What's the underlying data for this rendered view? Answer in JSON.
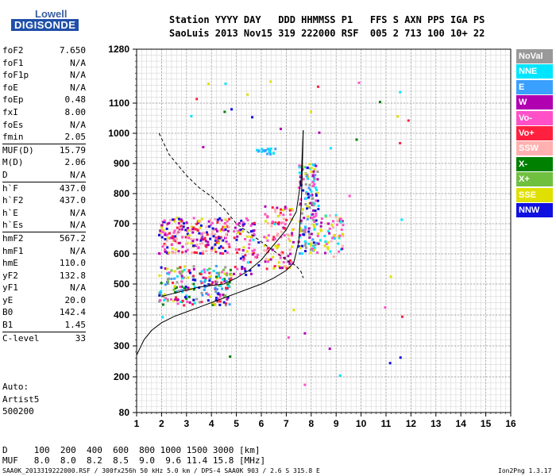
{
  "logo": {
    "line1": "Lowell",
    "line2": "DIGISONDE"
  },
  "header": {
    "row1": "Station YYYY DAY   DDD HHMMSS P1   FFS S AXN PPS IGA PS",
    "row2": "SaoLuis 2013 Nov15 319 222000 RSF  005 2 713 100 10+ 22"
  },
  "parameters": [
    {
      "label": "foF2",
      "value": "7.650"
    },
    {
      "label": "foF1",
      "value": "N/A"
    },
    {
      "label": "foF1p",
      "value": "N/A"
    },
    {
      "label": "foE",
      "value": "N/A"
    },
    {
      "label": "foEp",
      "value": "0.48"
    },
    {
      "label": "fxI",
      "value": "8.00"
    },
    {
      "label": "foEs",
      "value": "N/A"
    },
    {
      "label": "fmin",
      "value": "2.05"
    },
    {
      "label": "MUF(D)",
      "value": "15.79"
    },
    {
      "label": "M(D)",
      "value": "2.06"
    },
    {
      "label": "D",
      "value": "N/A"
    },
    {
      "label": "h`F",
      "value": "437.0"
    },
    {
      "label": "h`F2",
      "value": "437.0"
    },
    {
      "label": "h`E",
      "value": "N/A"
    },
    {
      "label": "h`Es",
      "value": "N/A"
    },
    {
      "label": "hmF2",
      "value": "567.2"
    },
    {
      "label": "hmF1",
      "value": "N/A"
    },
    {
      "label": "hmE",
      "value": "110.0"
    },
    {
      "label": "yF2",
      "value": "132.8"
    },
    {
      "label": "yF1",
      "value": "N/A"
    },
    {
      "label": "yE",
      "value": "20.0"
    },
    {
      "label": "B0",
      "value": "142.4"
    },
    {
      "label": "B1",
      "value": "1.45"
    },
    {
      "label": "C-level",
      "value": "33"
    }
  ],
  "auto": {
    "line1": "Auto:",
    "line2": "Artist5",
    "line3": "500200"
  },
  "distance_row": "D     100  200  400  600  800 1000 1500 3000 [km]",
  "muf_row": "MUF   8.0  8.0  8.2  8.5  9.0  9.6 11.4 15.8 [MHz]",
  "footer": {
    "left": "SAA0K_2013319222000.RSF / 300fx256h 50 kHz 5.0 km / DPS-4 SAA0K 903 / 2.6 S 315.8 E",
    "right": "Ion2Png 1.3.17"
  },
  "legend": [
    {
      "label": "NoVal",
      "color": "#999999"
    },
    {
      "label": "NNE",
      "color": "#00e5ff"
    },
    {
      "label": "E",
      "color": "#3aa0ff"
    },
    {
      "label": "W",
      "color": "#b000b0"
    },
    {
      "label": "Vo-",
      "color": "#ff50c8"
    },
    {
      "label": "Vo+",
      "color": "#ff2040"
    },
    {
      "label": "SSW",
      "color": "#ffb0b0"
    },
    {
      "label": "X-",
      "color": "#008000"
    },
    {
      "label": "X+",
      "color": "#70c040"
    },
    {
      "label": "SSE",
      "color": "#e0e000"
    },
    {
      "label": "NNW",
      "color": "#1010e0"
    }
  ],
  "chart_data": {
    "type": "scatter",
    "title": "",
    "xlabel": "",
    "ylabel": "",
    "xlim": [
      1,
      16
    ],
    "ylim": [
      80,
      1280
    ],
    "x_ticks": [
      "1",
      "2",
      "3",
      "4",
      "5",
      "6",
      "7",
      "8",
      "9",
      "10",
      "11",
      "12",
      "13",
      "14",
      "15",
      "16"
    ],
    "y_ticks": [
      "80",
      "200",
      "300",
      "400",
      "500",
      "600",
      "700",
      "800",
      "900",
      "1000",
      "1100",
      "1280"
    ],
    "grid": true,
    "traces": [
      {
        "name": "",
        "style": "solid",
        "points": [
          [
            1,
            270
          ],
          [
            1.3,
            320
          ],
          [
            1.6,
            350
          ],
          [
            2,
            375
          ],
          [
            2.5,
            395
          ],
          [
            3,
            410
          ],
          [
            3.5,
            425
          ],
          [
            4,
            440
          ],
          [
            4.5,
            455
          ],
          [
            5,
            470
          ],
          [
            5.5,
            485
          ],
          [
            6,
            500
          ],
          [
            6.5,
            520
          ],
          [
            7,
            545
          ],
          [
            7.3,
            570
          ],
          [
            7.5,
            640
          ],
          [
            7.6,
            760
          ],
          [
            7.65,
            900
          ],
          [
            7.68,
            1010
          ]
        ]
      },
      {
        "name": "",
        "style": "solid",
        "points": [
          [
            2,
            460
          ],
          [
            2.5,
            470
          ],
          [
            3,
            480
          ],
          [
            3.5,
            490
          ],
          [
            4,
            495
          ],
          [
            4.5,
            500
          ],
          [
            5,
            520
          ],
          [
            5.5,
            545
          ],
          [
            6,
            580
          ],
          [
            6.5,
            630
          ],
          [
            7,
            680
          ],
          [
            7.4,
            740
          ],
          [
            7.6,
            850
          ],
          [
            7.65,
            950
          ],
          [
            7.68,
            1010
          ]
        ]
      },
      {
        "name": "",
        "style": "dashed",
        "points": [
          [
            1.9,
            1000
          ],
          [
            2.3,
            930
          ],
          [
            3,
            860
          ],
          [
            3.5,
            820
          ],
          [
            4,
            790
          ],
          [
            4.5,
            750
          ],
          [
            5,
            700
          ],
          [
            5.5,
            670
          ],
          [
            6,
            640
          ],
          [
            6.5,
            610
          ],
          [
            7,
            580
          ],
          [
            7.4,
            560
          ],
          [
            7.6,
            540
          ],
          [
            7.68,
            520
          ]
        ]
      }
    ],
    "clusters": [
      {
        "x": [
          1.9,
          4.8
        ],
        "y": [
          430,
          560
        ],
        "dots": 220,
        "colors": [
          "#b000b0",
          "#ff50c8",
          "#e0e000",
          "#00e5ff",
          "#3aa0ff",
          "#1010e0",
          "#ff2040",
          "#70c040",
          "#008000",
          "#999999"
        ]
      },
      {
        "x": [
          1.9,
          4.8
        ],
        "y": [
          600,
          720
        ],
        "dots": 230,
        "colors": [
          "#b000b0",
          "#1010e0",
          "#ff50c8",
          "#ff2040",
          "#e0e000",
          "#ffb0b0"
        ]
      },
      {
        "x": [
          4.9,
          5.9
        ],
        "y": [
          530,
          720
        ],
        "dots": 70,
        "colors": [
          "#b000b0",
          "#ff50c8",
          "#e0e000",
          "#1010e0",
          "#ff2040"
        ]
      },
      {
        "x": [
          6.1,
          7.3
        ],
        "y": [
          550,
          760
        ],
        "dots": 110,
        "colors": [
          "#e0e000",
          "#ff50c8",
          "#ffb0b0",
          "#b000b0",
          "#ff2040"
        ]
      },
      {
        "x": [
          7.5,
          8.3
        ],
        "y": [
          600,
          900
        ],
        "dots": 170,
        "colors": [
          "#00e5ff",
          "#3aa0ff",
          "#1010e0",
          "#b000b0",
          "#e0e000",
          "#ff50c8",
          "#999999"
        ]
      },
      {
        "x": [
          8.3,
          9.3
        ],
        "y": [
          590,
          730
        ],
        "dots": 60,
        "colors": [
          "#ff50c8",
          "#e0e000",
          "#00e5ff",
          "#b000b0",
          "#ffb0b0"
        ]
      },
      {
        "x": [
          5.8,
          6.6
        ],
        "y": [
          930,
          950
        ],
        "dots": 20,
        "colors": [
          "#3aa0ff",
          "#00e5ff"
        ]
      },
      {
        "x": [
          2.0,
          12.0
        ],
        "y": [
          150,
          1200
        ],
        "dots": 45,
        "colors": [
          "#e0e000",
          "#ff50c8",
          "#b000b0",
          "#1010e0",
          "#00e5ff",
          "#ff2040",
          "#008000"
        ]
      }
    ]
  }
}
